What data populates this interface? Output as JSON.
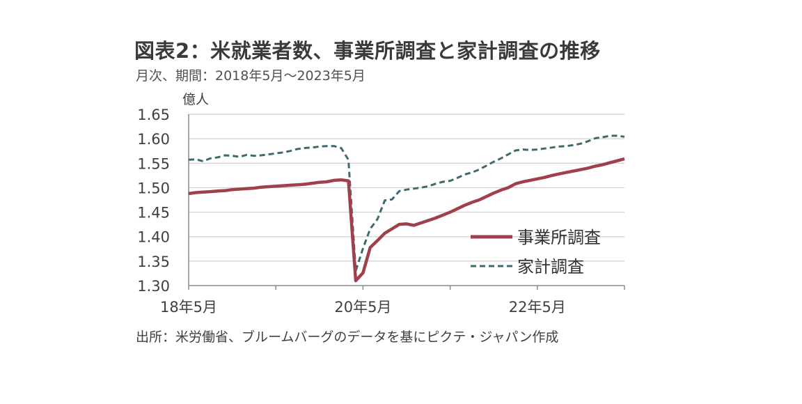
{
  "title": "図表2：米就業者数、事業所調査と家計調査の推移",
  "subtitle": "月次、期間：2018年5月～2023年5月",
  "source": "出所：米労働省、ブルームバーグのデータを基にピクテ・ジャパン作成",
  "colors": {
    "establishment": "#A0404A",
    "household": "#3E6A6E",
    "grid": "#D0D0D0",
    "axis": "#8A8A8A"
  },
  "chart_data": {
    "type": "line",
    "ylabel": "億人",
    "ylim": [
      1.3,
      1.65
    ],
    "yticks": [
      "1.30",
      "1.35",
      "1.40",
      "1.45",
      "1.50",
      "1.55",
      "1.60",
      "1.65"
    ],
    "xticks": [
      "18年5月",
      "20年5月",
      "22年5月"
    ],
    "x": [
      "2018-05",
      "2018-06",
      "2018-07",
      "2018-08",
      "2018-09",
      "2018-10",
      "2018-11",
      "2018-12",
      "2019-01",
      "2019-02",
      "2019-03",
      "2019-04",
      "2019-05",
      "2019-06",
      "2019-07",
      "2019-08",
      "2019-09",
      "2019-10",
      "2019-11",
      "2019-12",
      "2020-01",
      "2020-02",
      "2020-03",
      "2020-04",
      "2020-05",
      "2020-06",
      "2020-07",
      "2020-08",
      "2020-09",
      "2020-10",
      "2020-11",
      "2020-12",
      "2021-01",
      "2021-02",
      "2021-03",
      "2021-04",
      "2021-05",
      "2021-06",
      "2021-07",
      "2021-08",
      "2021-09",
      "2021-10",
      "2021-11",
      "2021-12",
      "2022-01",
      "2022-02",
      "2022-03",
      "2022-04",
      "2022-05",
      "2022-06",
      "2022-07",
      "2022-08",
      "2022-09",
      "2022-10",
      "2022-11",
      "2022-12",
      "2023-01",
      "2023-02",
      "2023-03",
      "2023-04",
      "2023-05"
    ],
    "series": [
      {
        "name": "事業所調査",
        "style": "solid",
        "values": [
          1.488,
          1.49,
          1.491,
          1.492,
          1.493,
          1.494,
          1.496,
          1.497,
          1.498,
          1.499,
          1.501,
          1.502,
          1.503,
          1.504,
          1.505,
          1.506,
          1.507,
          1.509,
          1.511,
          1.512,
          1.515,
          1.516,
          1.514,
          1.31,
          1.326,
          1.378,
          1.392,
          1.407,
          1.416,
          1.425,
          1.426,
          1.423,
          1.428,
          1.433,
          1.438,
          1.444,
          1.45,
          1.457,
          1.464,
          1.47,
          1.475,
          1.482,
          1.489,
          1.495,
          1.5,
          1.508,
          1.512,
          1.515,
          1.518,
          1.521,
          1.525,
          1.528,
          1.531,
          1.534,
          1.537,
          1.54,
          1.544,
          1.547,
          1.551,
          1.555,
          1.559
        ]
      },
      {
        "name": "家計調査",
        "style": "dashed",
        "values": [
          1.557,
          1.558,
          1.554,
          1.56,
          1.562,
          1.566,
          1.565,
          1.563,
          1.567,
          1.565,
          1.566,
          1.568,
          1.57,
          1.572,
          1.575,
          1.579,
          1.581,
          1.582,
          1.584,
          1.585,
          1.585,
          1.581,
          1.557,
          1.33,
          1.376,
          1.416,
          1.436,
          1.474,
          1.476,
          1.493,
          1.496,
          1.498,
          1.5,
          1.503,
          1.508,
          1.512,
          1.514,
          1.52,
          1.527,
          1.531,
          1.537,
          1.545,
          1.553,
          1.56,
          1.568,
          1.576,
          1.578,
          1.577,
          1.578,
          1.58,
          1.582,
          1.584,
          1.585,
          1.587,
          1.59,
          1.595,
          1.601,
          1.603,
          1.606,
          1.606,
          1.604
        ]
      }
    ]
  }
}
